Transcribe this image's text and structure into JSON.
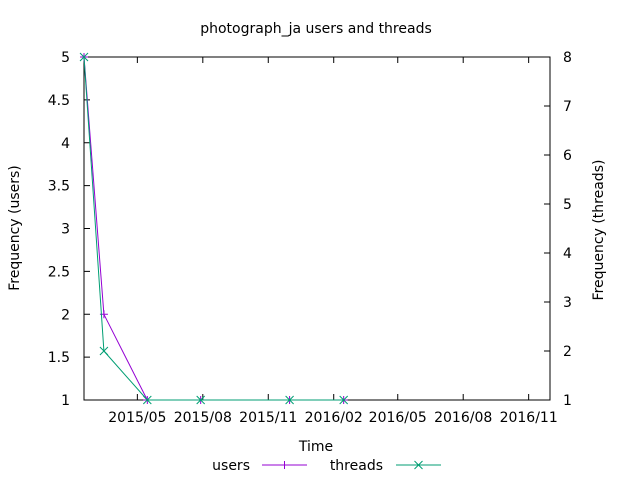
{
  "chart_data": {
    "type": "line",
    "title": "photograph_ja users and threads",
    "xlabel": "Time",
    "ylabel": "Frequency (users)",
    "y2label": "Frequency (threads)",
    "xlim": [
      "2015-02-15",
      "2016-12-01"
    ],
    "ylim": [
      1,
      5
    ],
    "y2lim": [
      1,
      8
    ],
    "x_tick_labels": [
      "2015/05",
      "2015/08",
      "2015/11",
      "2016/02",
      "2016/05",
      "2016/08",
      "2016/11"
    ],
    "x_tick_dates": [
      "2015-05-01",
      "2015-08-01",
      "2015-11-01",
      "2016-02-01",
      "2016-05-01",
      "2016-08-01",
      "2016-11-01"
    ],
    "y_tick_labels": [
      "1",
      "1.5",
      "2",
      "2.5",
      "3",
      "3.5",
      "4",
      "4.5",
      "5"
    ],
    "y2_tick_labels": [
      "1",
      "2",
      "3",
      "4",
      "5",
      "6",
      "7",
      "8"
    ],
    "grid": false,
    "legend_position": "bottom-center",
    "series": [
      {
        "name": "users",
        "axis": "left",
        "color": "#9400d3",
        "marker": "plus",
        "x": [
          "2015-02-15",
          "2015-03-15",
          "2015-05-15",
          "2015-07-29",
          "2015-12-01",
          "2016-02-15"
        ],
        "values": [
          5,
          2,
          1,
          1,
          1,
          1
        ]
      },
      {
        "name": "threads",
        "axis": "right",
        "color": "#009e73",
        "marker": "cross",
        "x": [
          "2015-02-15",
          "2015-03-15",
          "2015-05-15",
          "2015-07-29",
          "2015-12-01",
          "2016-02-15"
        ],
        "values": [
          8,
          2,
          1,
          1,
          1,
          1
        ]
      }
    ]
  }
}
